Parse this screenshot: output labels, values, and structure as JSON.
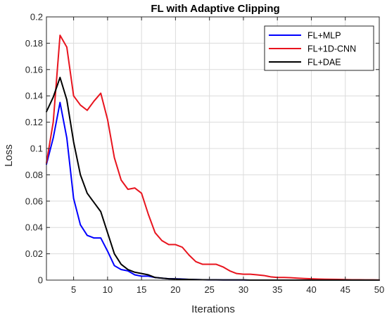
{
  "chart_data": {
    "type": "line",
    "title": "FL with Adaptive Clipping",
    "xlabel": "Iterations",
    "ylabel": "Loss",
    "xlim": [
      1,
      50
    ],
    "ylim": [
      0,
      0.2
    ],
    "xticks": [
      5,
      10,
      15,
      20,
      25,
      30,
      35,
      40,
      45,
      50
    ],
    "yticks": [
      0,
      0.02,
      0.04,
      0.06,
      0.08,
      0.1,
      0.12,
      0.14,
      0.16,
      0.18,
      0.2
    ],
    "grid": true,
    "legend_position": "top-right",
    "x": [
      1,
      2,
      3,
      4,
      5,
      6,
      7,
      8,
      9,
      10,
      11,
      12,
      13,
      14,
      15,
      16,
      17,
      18,
      19,
      20,
      21,
      22,
      23,
      24,
      25,
      26,
      27,
      28,
      29,
      30,
      31,
      32,
      33,
      34,
      35,
      36,
      37,
      38,
      39,
      40,
      41,
      42,
      43,
      44,
      45,
      46,
      47,
      48,
      49,
      50
    ],
    "series": [
      {
        "name": "FL+MLP",
        "color": "#0000ff",
        "values": [
          0.088,
          0.108,
          0.135,
          0.108,
          0.062,
          0.042,
          0.034,
          0.032,
          0.032,
          0.022,
          0.011,
          0.008,
          0.007,
          0.004,
          0.003,
          0.003,
          0.002,
          0.0015,
          0.001,
          0.001,
          0.0008,
          0.0005,
          0.0004,
          0.0003,
          0.0002,
          0.0002,
          0.0001,
          0.0001,
          0.0001,
          0.0001,
          0,
          0,
          0,
          0,
          0,
          0,
          0,
          0,
          0,
          0,
          0,
          0,
          0,
          0,
          0,
          0,
          0,
          0,
          0,
          0
        ]
      },
      {
        "name": "FL+1D-CNN",
        "color": "#e8141e",
        "values": [
          0.089,
          0.12,
          0.186,
          0.177,
          0.14,
          0.133,
          0.129,
          0.136,
          0.142,
          0.122,
          0.093,
          0.076,
          0.069,
          0.07,
          0.066,
          0.05,
          0.036,
          0.03,
          0.027,
          0.027,
          0.025,
          0.019,
          0.014,
          0.012,
          0.012,
          0.012,
          0.01,
          0.007,
          0.005,
          0.0045,
          0.0045,
          0.004,
          0.0035,
          0.0025,
          0.002,
          0.002,
          0.0018,
          0.0015,
          0.0012,
          0.001,
          0.0008,
          0.0007,
          0.0006,
          0.0005,
          0.0004,
          0.0003,
          0.0003,
          0.0002,
          0.0002,
          0.0001
        ]
      },
      {
        "name": "FL+DAE",
        "color": "#000000",
        "values": [
          0.128,
          0.139,
          0.154,
          0.137,
          0.105,
          0.08,
          0.066,
          0.059,
          0.052,
          0.036,
          0.02,
          0.012,
          0.008,
          0.006,
          0.005,
          0.004,
          0.002,
          0.0015,
          0.001,
          0.0008,
          0.0006,
          0.0005,
          0.0004,
          0.0003,
          0.0002,
          0.0002,
          0.0001,
          0.0001,
          0.0001,
          0.0001,
          0,
          0,
          0,
          0,
          0,
          0,
          0,
          0,
          0,
          0,
          0,
          0,
          0,
          0,
          0,
          0,
          0,
          0,
          0,
          0
        ]
      }
    ]
  }
}
